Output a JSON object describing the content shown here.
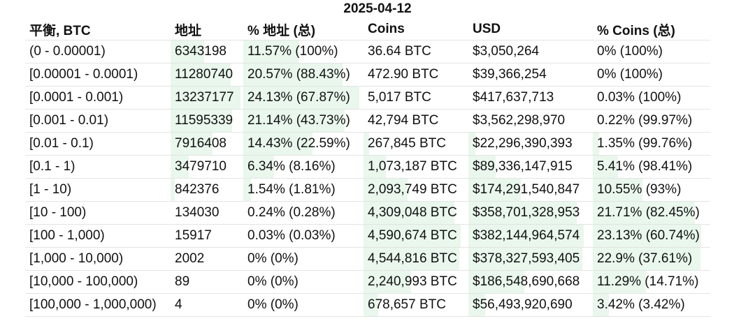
{
  "date": "2025-04-12",
  "headers": [
    "平衡, BTC",
    "地址",
    "% 地址 (总)",
    "Coins",
    "USD",
    "% Coins (总)"
  ],
  "colors": {
    "bar_green": "#e9f7ec",
    "border": "#e4e4e4"
  },
  "rows": [
    {
      "range": "(0 - 0.00001)",
      "addresses": "6343198",
      "pct_addr": "11.57% (100%)",
      "coins": "36.64 BTC",
      "usd": "$3,050,264",
      "pct_coins": "0% (100%)",
      "addr_share": 11.57,
      "coin_share": 0
    },
    {
      "range": "[0.00001 - 0.0001)",
      "addresses": "11280740",
      "pct_addr": "20.57% (88.43%)",
      "coins": "472.90 BTC",
      "usd": "$39,366,254",
      "pct_coins": "0% (100%)",
      "addr_share": 20.57,
      "coin_share": 0
    },
    {
      "range": "[0.0001 - 0.001)",
      "addresses": "13237177",
      "pct_addr": "24.13% (67.87%)",
      "coins": "5,017 BTC",
      "usd": "$417,637,713",
      "pct_coins": "0.03% (100%)",
      "addr_share": 24.13,
      "coin_share": 0.03
    },
    {
      "range": "[0.001 - 0.01)",
      "addresses": "11595339",
      "pct_addr": "21.14% (43.73%)",
      "coins": "42,794 BTC",
      "usd": "$3,562,298,970",
      "pct_coins": "0.22% (99.97%)",
      "addr_share": 21.14,
      "coin_share": 0.22
    },
    {
      "range": "[0.01 - 0.1)",
      "addresses": "7916408",
      "pct_addr": "14.43% (22.59%)",
      "coins": "267,845 BTC",
      "usd": "$22,296,390,393",
      "pct_coins": "1.35% (99.76%)",
      "addr_share": 14.43,
      "coin_share": 1.35
    },
    {
      "range": "[0.1 - 1)",
      "addresses": "3479710",
      "pct_addr": "6.34% (8.16%)",
      "coins": "1,073,187 BTC",
      "usd": "$89,336,147,915",
      "pct_coins": "5.41% (98.41%)",
      "addr_share": 6.34,
      "coin_share": 5.41
    },
    {
      "range": "[1 - 10)",
      "addresses": "842376",
      "pct_addr": "1.54% (1.81%)",
      "coins": "2,093,749 BTC",
      "usd": "$174,291,540,847",
      "pct_coins": "10.55% (93%)",
      "addr_share": 1.54,
      "coin_share": 10.55
    },
    {
      "range": "[10 - 100)",
      "addresses": "134030",
      "pct_addr": "0.24% (0.28%)",
      "coins": "4,309,048 BTC",
      "usd": "$358,701,328,953",
      "pct_coins": "21.71% (82.45%)",
      "addr_share": 0.24,
      "coin_share": 21.71
    },
    {
      "range": "[100 - 1,000)",
      "addresses": "15917",
      "pct_addr": "0.03% (0.03%)",
      "coins": "4,590,674 BTC",
      "usd": "$382,144,964,574",
      "pct_coins": "23.13% (60.74%)",
      "addr_share": 0.03,
      "coin_share": 23.13
    },
    {
      "range": "[1,000 - 10,000)",
      "addresses": "2002",
      "pct_addr": "0% (0%)",
      "coins": "4,544,816 BTC",
      "usd": "$378,327,593,405",
      "pct_coins": "22.9% (37.61%)",
      "addr_share": 0,
      "coin_share": 22.9
    },
    {
      "range": "[10,000 - 100,000)",
      "addresses": "89",
      "pct_addr": "0% (0%)",
      "coins": "2,240,993 BTC",
      "usd": "$186,548,690,668",
      "pct_coins": "11.29% (14.71%)",
      "addr_share": 0,
      "coin_share": 11.29
    },
    {
      "range": "[100,000 - 1,000,000)",
      "addresses": "4",
      "pct_addr": "0% (0%)",
      "coins": "678,657 BTC",
      "usd": "$56,493,920,690",
      "pct_coins": "3.42% (3.42%)",
      "addr_share": 0,
      "coin_share": 3.42
    }
  ]
}
